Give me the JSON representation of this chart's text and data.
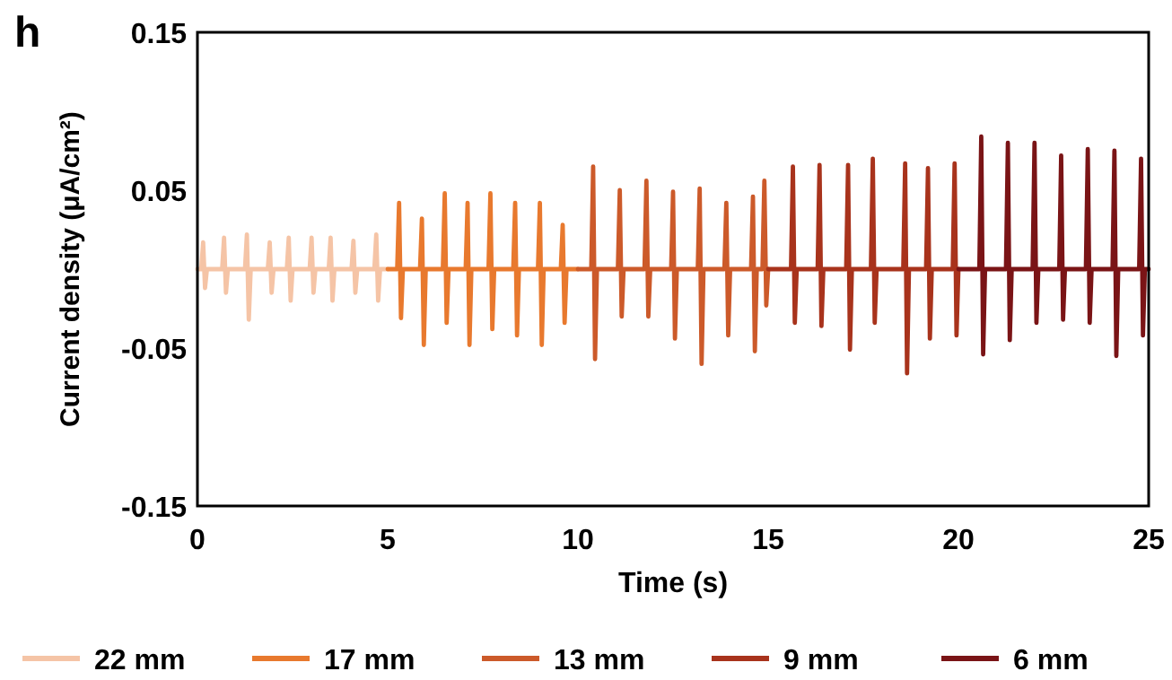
{
  "chart_data": {
    "type": "line",
    "title": "h",
    "xlabel": "Time (s)",
    "ylabel": "Current density (μA/cm²)",
    "xlim": [
      0,
      25
    ],
    "xticks": [
      0,
      5,
      10,
      15,
      20,
      25
    ],
    "ylim": [
      -0.15,
      0.15
    ],
    "yticks": [
      -0.15,
      -0.05,
      0.05,
      0.15
    ],
    "grid": false,
    "legend": "bottom",
    "marker": "none",
    "line_style": "solid",
    "series": [
      {
        "name": "22 mm",
        "color": "#f5c4a6",
        "x": [
          0,
          0.1,
          0.15,
          0.2,
          0.25,
          0.65,
          0.7,
          0.75,
          0.8,
          1.25,
          1.3,
          1.35,
          1.4,
          1.85,
          1.9,
          1.95,
          2.0,
          2.35,
          2.4,
          2.45,
          2.5,
          2.95,
          3.0,
          3.05,
          3.1,
          3.45,
          3.5,
          3.55,
          3.6,
          4.05,
          4.1,
          4.15,
          4.2,
          4.65,
          4.7,
          4.75,
          4.8,
          5
        ],
        "values": [
          0,
          0,
          0.017,
          -0.012,
          0,
          0,
          0.02,
          -0.015,
          0,
          0,
          0.022,
          -0.032,
          0,
          0,
          0.017,
          -0.015,
          0,
          0,
          0.02,
          -0.02,
          0,
          0,
          0.02,
          -0.015,
          0,
          0,
          0.02,
          -0.02,
          0,
          0,
          0.018,
          -0.015,
          0,
          0,
          0.022,
          -0.02,
          0,
          0
        ]
      },
      {
        "name": "17 mm",
        "color": "#e8792e",
        "x": [
          5,
          5.25,
          5.3,
          5.35,
          5.4,
          5.85,
          5.9,
          5.95,
          6.0,
          6.45,
          6.5,
          6.55,
          6.6,
          7.05,
          7.1,
          7.15,
          7.2,
          7.65,
          7.7,
          7.75,
          7.8,
          8.3,
          8.35,
          8.4,
          8.45,
          8.95,
          9.0,
          9.05,
          9.1,
          9.55,
          9.6,
          9.65,
          9.7,
          10
        ],
        "values": [
          0,
          0,
          0.042,
          -0.031,
          0,
          0,
          0.032,
          -0.048,
          0,
          0,
          0.048,
          -0.034,
          0,
          0,
          0.042,
          -0.048,
          0,
          0,
          0.048,
          -0.038,
          0,
          0,
          0.042,
          -0.042,
          0,
          0,
          0.042,
          -0.048,
          0,
          0,
          0.028,
          -0.034,
          0,
          0
        ]
      },
      {
        "name": "13 mm",
        "color": "#cc5a2a",
        "x": [
          10,
          10.35,
          10.4,
          10.45,
          10.5,
          11.05,
          11.1,
          11.15,
          11.2,
          11.75,
          11.8,
          11.85,
          11.9,
          12.45,
          12.5,
          12.55,
          12.6,
          13.15,
          13.2,
          13.25,
          13.3,
          13.85,
          13.9,
          13.95,
          14.0,
          14.55,
          14.6,
          14.65,
          14.7,
          14.85,
          14.9,
          14.95,
          15
        ],
        "values": [
          0,
          0,
          0.065,
          -0.057,
          0,
          0,
          0.05,
          -0.03,
          0,
          0,
          0.056,
          -0.03,
          0,
          0,
          0.049,
          -0.044,
          0,
          0,
          0.051,
          -0.06,
          0,
          0,
          0.042,
          -0.042,
          0,
          0,
          0.046,
          -0.052,
          0,
          0,
          0.056,
          -0.023,
          0
        ]
      },
      {
        "name": "9 mm",
        "color": "#a8331c",
        "x": [
          15,
          15.6,
          15.65,
          15.7,
          15.75,
          16.3,
          16.35,
          16.4,
          16.45,
          17.05,
          17.1,
          17.15,
          17.2,
          17.7,
          17.75,
          17.8,
          17.85,
          18.55,
          18.6,
          18.65,
          18.7,
          19.15,
          19.2,
          19.25,
          19.3,
          19.85,
          19.9,
          19.95,
          20
        ],
        "values": [
          0,
          0,
          0.065,
          -0.034,
          0,
          0,
          0.066,
          -0.036,
          0,
          0,
          0.066,
          -0.051,
          0,
          0,
          0.07,
          -0.034,
          0,
          0,
          0.067,
          -0.066,
          0,
          0,
          0.064,
          -0.044,
          0,
          0,
          0.067,
          -0.042,
          0
        ]
      },
      {
        "name": "6 mm",
        "color": "#7a1416",
        "x": [
          20,
          20.55,
          20.6,
          20.65,
          20.7,
          21.25,
          21.3,
          21.35,
          21.4,
          21.95,
          22.0,
          22.05,
          22.1,
          22.65,
          22.7,
          22.75,
          22.8,
          23.35,
          23.4,
          23.45,
          23.5,
          24.05,
          24.1,
          24.15,
          24.2,
          24.75,
          24.8,
          24.85,
          24.9,
          25
        ],
        "values": [
          0,
          0,
          0.084,
          -0.054,
          0,
          0,
          0.08,
          -0.045,
          0,
          0,
          0.08,
          -0.034,
          0,
          0,
          0.072,
          -0.032,
          0,
          0,
          0.076,
          -0.034,
          0,
          0,
          0.075,
          -0.055,
          0,
          0,
          0.07,
          -0.042,
          0,
          0
        ]
      }
    ]
  }
}
